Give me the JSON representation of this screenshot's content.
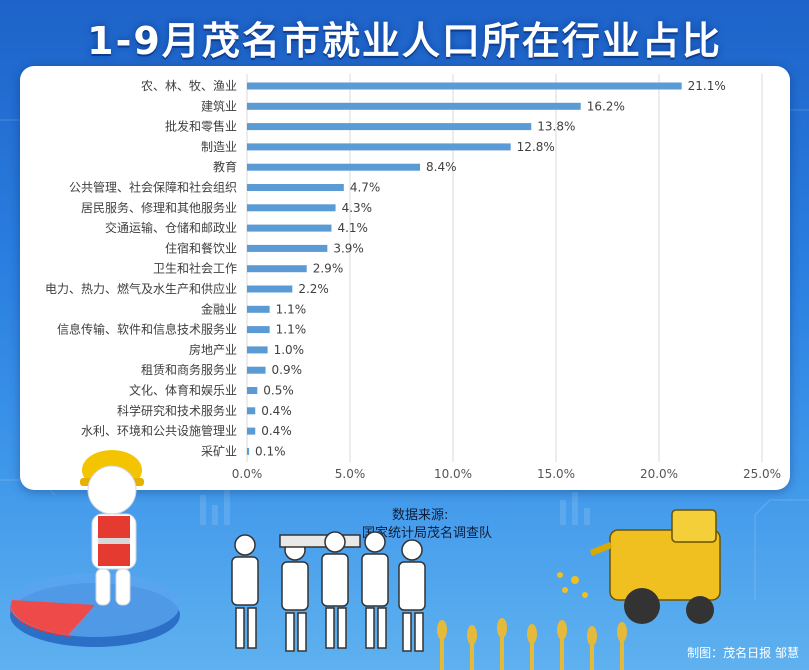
{
  "title": "1-9月茂名市就业人口所在行业占比",
  "source": {
    "label": "数据来源:",
    "value": "国家统计局茂名调查队"
  },
  "credit": "制图：茂名日报 邹慧",
  "chart_data": {
    "type": "bar",
    "orientation": "horizontal",
    "categories": [
      "农、林、牧、渔业",
      "建筑业",
      "批发和零售业",
      "制造业",
      "教育",
      "公共管理、社会保障和社会组织",
      "居民服务、修理和其他服务业",
      "交通运输、仓储和邮政业",
      "住宿和餐饮业",
      "卫生和社会工作",
      "电力、热力、燃气及水生产和供应业",
      "金融业",
      "信息传输、软件和信息技术服务业",
      "房地产业",
      "租赁和商务服务业",
      "文化、体育和娱乐业",
      "科学研究和技术服务业",
      "水利、环境和公共设施管理业",
      "采矿业"
    ],
    "values": [
      21.1,
      16.2,
      13.8,
      12.8,
      8.4,
      4.7,
      4.3,
      4.1,
      3.9,
      2.9,
      2.2,
      1.1,
      1.1,
      1.0,
      0.9,
      0.5,
      0.4,
      0.4,
      0.1
    ],
    "data_labels": [
      "21.1%",
      "16.2%",
      "13.8%",
      "12.8%",
      "8.4%",
      "4.7%",
      "4.3%",
      "4.1%",
      "3.9%",
      "2.9%",
      "2.2%",
      "1.1%",
      "1.1%",
      "1.0%",
      "0.9%",
      "0.5%",
      "0.4%",
      "0.4%",
      "0.1%"
    ],
    "x_ticks": [
      0,
      5,
      10,
      15,
      20,
      25
    ],
    "x_tick_labels": [
      "0.0%",
      "5.0%",
      "10.0%",
      "15.0%",
      "20.0%",
      "25.0%"
    ],
    "xlim": [
      0,
      25
    ],
    "grid": "vertical",
    "bar_color": "#5b9bd5"
  }
}
